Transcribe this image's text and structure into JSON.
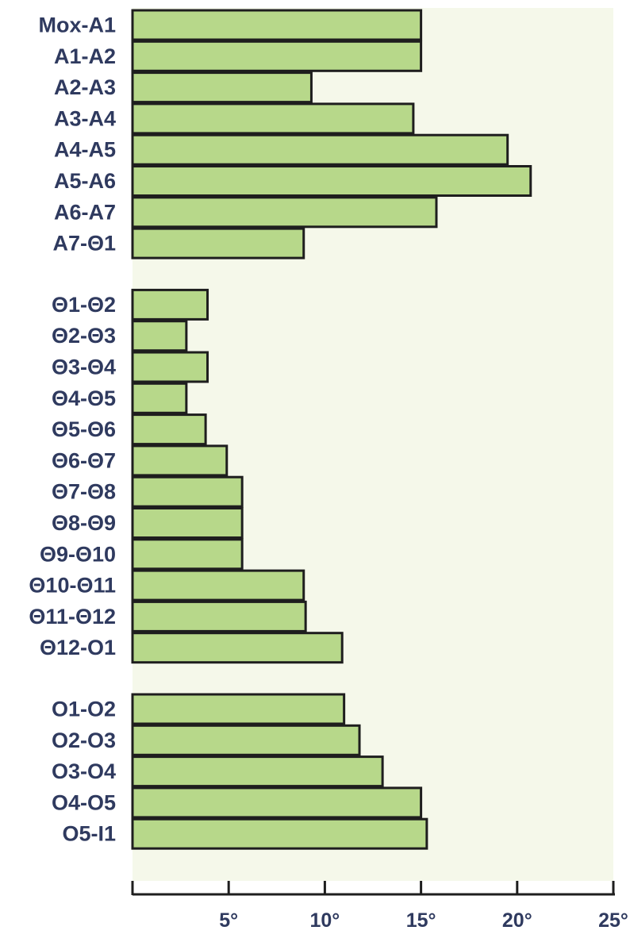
{
  "chart_data": {
    "type": "bar",
    "orientation": "horizontal",
    "title": "",
    "xlabel": "",
    "ylabel": "",
    "xlim": [
      0,
      25
    ],
    "grid": false,
    "legend": "none",
    "categories": [
      "Mox-A1",
      "A1-A2",
      "A2-A3",
      "A3-A4",
      "A4-A5",
      "A5-A6",
      "A6-A7",
      "A7-Θ1",
      "Θ1-Θ2",
      "Θ2-Θ3",
      "Θ3-Θ4",
      "Θ4-Θ5",
      "Θ5-Θ6",
      "Θ6-Θ7",
      "Θ7-Θ8",
      "Θ8-Θ9",
      "Θ9-Θ10",
      "Θ10-Θ11",
      "Θ11-Θ12",
      "Θ12-O1",
      "O1-O2",
      "O2-O3",
      "O3-O4",
      "O4-O5",
      "O5-I1"
    ],
    "groups": [
      8,
      12,
      5
    ],
    "values": [
      15,
      15,
      9.3,
      14.6,
      19.5,
      20.7,
      15.8,
      8.9,
      3.9,
      2.8,
      3.9,
      2.8,
      3.8,
      4.9,
      5.7,
      5.7,
      5.7,
      8.9,
      9.0,
      10.9,
      11.0,
      11.8,
      13.0,
      15.0,
      15.3
    ],
    "xticks": [
      5,
      10,
      15,
      20,
      25
    ],
    "xtick_labels": [
      "5°",
      "10°",
      "15°",
      "20°",
      "25°"
    ],
    "colors": {
      "bar_fill": "#b7d88a",
      "bar_stroke": "#1e1e1e",
      "plot_background": "#f5f8ea",
      "text": "#2f3a5f"
    }
  }
}
